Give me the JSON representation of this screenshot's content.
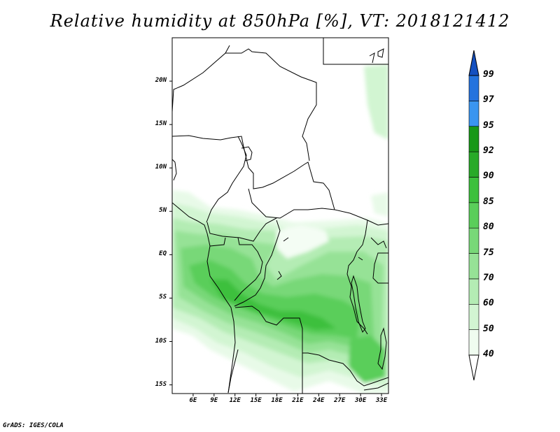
{
  "title": "Relative humidity at 850hPa [%], VT: 2018121412",
  "credit": "GrADS: IGES/COLA",
  "map": {
    "variable": "Relative humidity",
    "level": "850hPa",
    "units": "%",
    "valid_time": "2018121412",
    "lon_range": [
      3,
      34
    ],
    "lat_range": [
      -16,
      25
    ],
    "lat_ticks": [
      {
        "label": "20N",
        "value": 20
      },
      {
        "label": "15N",
        "value": 15
      },
      {
        "label": "10N",
        "value": 10
      },
      {
        "label": "5N",
        "value": 5
      },
      {
        "label": "EQ",
        "value": 0
      },
      {
        "label": "5S",
        "value": -5
      },
      {
        "label": "10S",
        "value": -10
      },
      {
        "label": "15S",
        "value": -15
      }
    ],
    "lon_ticks": [
      {
        "label": "6E",
        "value": 6
      },
      {
        "label": "9E",
        "value": 9
      },
      {
        "label": "12E",
        "value": 12
      },
      {
        "label": "15E",
        "value": 15
      },
      {
        "label": "18E",
        "value": 18
      },
      {
        "label": "21E",
        "value": 21
      },
      {
        "label": "24E",
        "value": 24
      },
      {
        "label": "27E",
        "value": 27
      },
      {
        "label": "30E",
        "value": 30
      },
      {
        "label": "33E",
        "value": 33
      }
    ]
  },
  "colorbar": {
    "levels": [
      "40",
      "50",
      "60",
      "70",
      "75",
      "80",
      "85",
      "90",
      "92",
      "95",
      "97",
      "99"
    ],
    "colors": [
      "#f0fcf0",
      "#d2f5d2",
      "#b4ecb4",
      "#96e296",
      "#78d878",
      "#5ace5a",
      "#3cc03c",
      "#28aa28",
      "#189818",
      "#3a95f0",
      "#2473de",
      "#1450c0"
    ],
    "below_color": "#ffffff",
    "above_color": "#1450c0"
  }
}
